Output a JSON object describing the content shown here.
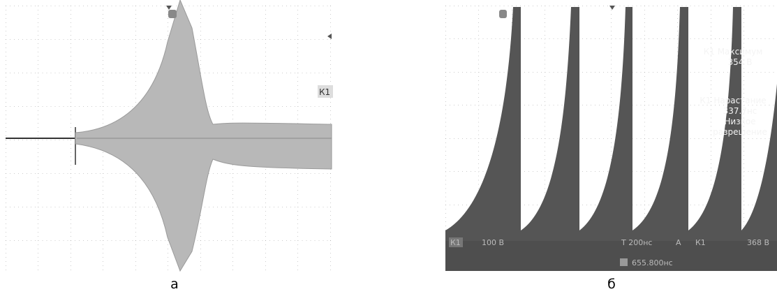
{
  "panels": [
    {
      "label": "а",
      "channel_marker": "К1"
    },
    {
      "label": "б",
      "measurements": [
        "К1 Максимум",
        "354 В",
        "К1 Нарастание",
        "337.7нс",
        "Низкое",
        "разрешение"
      ],
      "status_bar": [
        "К1",
        "100 В",
        "T 200нс",
        "A",
        "К1",
        "368 В"
      ],
      "trigger_position": "655.800нс"
    }
  ]
}
